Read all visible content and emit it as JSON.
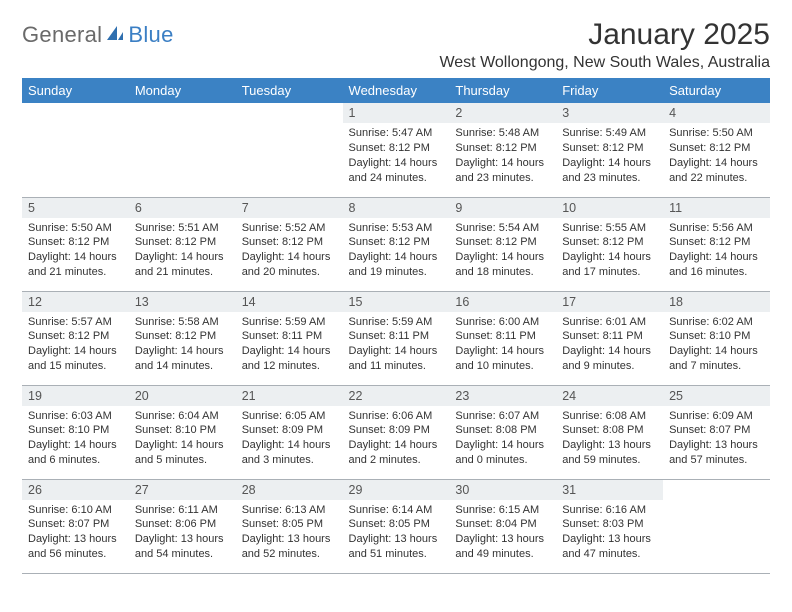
{
  "logo": {
    "text1": "General",
    "text2": "Blue"
  },
  "title": "January 2025",
  "location": "West Wollongong, New South Wales, Australia",
  "colors": {
    "header_bg": "#3b82c4",
    "header_text": "#ffffff",
    "daynum_bg": "#eceff1",
    "border": "#aab0b6",
    "body_text": "#333333",
    "logo_gray": "#6a6a6a",
    "logo_blue": "#3b7fc4"
  },
  "day_labels": [
    "Sunday",
    "Monday",
    "Tuesday",
    "Wednesday",
    "Thursday",
    "Friday",
    "Saturday"
  ],
  "weeks": [
    [
      {
        "n": "",
        "sr": "",
        "ss": "",
        "dl": ""
      },
      {
        "n": "",
        "sr": "",
        "ss": "",
        "dl": ""
      },
      {
        "n": "",
        "sr": "",
        "ss": "",
        "dl": ""
      },
      {
        "n": "1",
        "sr": "Sunrise: 5:47 AM",
        "ss": "Sunset: 8:12 PM",
        "dl": "Daylight: 14 hours and 24 minutes."
      },
      {
        "n": "2",
        "sr": "Sunrise: 5:48 AM",
        "ss": "Sunset: 8:12 PM",
        "dl": "Daylight: 14 hours and 23 minutes."
      },
      {
        "n": "3",
        "sr": "Sunrise: 5:49 AM",
        "ss": "Sunset: 8:12 PM",
        "dl": "Daylight: 14 hours and 23 minutes."
      },
      {
        "n": "4",
        "sr": "Sunrise: 5:50 AM",
        "ss": "Sunset: 8:12 PM",
        "dl": "Daylight: 14 hours and 22 minutes."
      }
    ],
    [
      {
        "n": "5",
        "sr": "Sunrise: 5:50 AM",
        "ss": "Sunset: 8:12 PM",
        "dl": "Daylight: 14 hours and 21 minutes."
      },
      {
        "n": "6",
        "sr": "Sunrise: 5:51 AM",
        "ss": "Sunset: 8:12 PM",
        "dl": "Daylight: 14 hours and 21 minutes."
      },
      {
        "n": "7",
        "sr": "Sunrise: 5:52 AM",
        "ss": "Sunset: 8:12 PM",
        "dl": "Daylight: 14 hours and 20 minutes."
      },
      {
        "n": "8",
        "sr": "Sunrise: 5:53 AM",
        "ss": "Sunset: 8:12 PM",
        "dl": "Daylight: 14 hours and 19 minutes."
      },
      {
        "n": "9",
        "sr": "Sunrise: 5:54 AM",
        "ss": "Sunset: 8:12 PM",
        "dl": "Daylight: 14 hours and 18 minutes."
      },
      {
        "n": "10",
        "sr": "Sunrise: 5:55 AM",
        "ss": "Sunset: 8:12 PM",
        "dl": "Daylight: 14 hours and 17 minutes."
      },
      {
        "n": "11",
        "sr": "Sunrise: 5:56 AM",
        "ss": "Sunset: 8:12 PM",
        "dl": "Daylight: 14 hours and 16 minutes."
      }
    ],
    [
      {
        "n": "12",
        "sr": "Sunrise: 5:57 AM",
        "ss": "Sunset: 8:12 PM",
        "dl": "Daylight: 14 hours and 15 minutes."
      },
      {
        "n": "13",
        "sr": "Sunrise: 5:58 AM",
        "ss": "Sunset: 8:12 PM",
        "dl": "Daylight: 14 hours and 14 minutes."
      },
      {
        "n": "14",
        "sr": "Sunrise: 5:59 AM",
        "ss": "Sunset: 8:11 PM",
        "dl": "Daylight: 14 hours and 12 minutes."
      },
      {
        "n": "15",
        "sr": "Sunrise: 5:59 AM",
        "ss": "Sunset: 8:11 PM",
        "dl": "Daylight: 14 hours and 11 minutes."
      },
      {
        "n": "16",
        "sr": "Sunrise: 6:00 AM",
        "ss": "Sunset: 8:11 PM",
        "dl": "Daylight: 14 hours and 10 minutes."
      },
      {
        "n": "17",
        "sr": "Sunrise: 6:01 AM",
        "ss": "Sunset: 8:11 PM",
        "dl": "Daylight: 14 hours and 9 minutes."
      },
      {
        "n": "18",
        "sr": "Sunrise: 6:02 AM",
        "ss": "Sunset: 8:10 PM",
        "dl": "Daylight: 14 hours and 7 minutes."
      }
    ],
    [
      {
        "n": "19",
        "sr": "Sunrise: 6:03 AM",
        "ss": "Sunset: 8:10 PM",
        "dl": "Daylight: 14 hours and 6 minutes."
      },
      {
        "n": "20",
        "sr": "Sunrise: 6:04 AM",
        "ss": "Sunset: 8:10 PM",
        "dl": "Daylight: 14 hours and 5 minutes."
      },
      {
        "n": "21",
        "sr": "Sunrise: 6:05 AM",
        "ss": "Sunset: 8:09 PM",
        "dl": "Daylight: 14 hours and 3 minutes."
      },
      {
        "n": "22",
        "sr": "Sunrise: 6:06 AM",
        "ss": "Sunset: 8:09 PM",
        "dl": "Daylight: 14 hours and 2 minutes."
      },
      {
        "n": "23",
        "sr": "Sunrise: 6:07 AM",
        "ss": "Sunset: 8:08 PM",
        "dl": "Daylight: 14 hours and 0 minutes."
      },
      {
        "n": "24",
        "sr": "Sunrise: 6:08 AM",
        "ss": "Sunset: 8:08 PM",
        "dl": "Daylight: 13 hours and 59 minutes."
      },
      {
        "n": "25",
        "sr": "Sunrise: 6:09 AM",
        "ss": "Sunset: 8:07 PM",
        "dl": "Daylight: 13 hours and 57 minutes."
      }
    ],
    [
      {
        "n": "26",
        "sr": "Sunrise: 6:10 AM",
        "ss": "Sunset: 8:07 PM",
        "dl": "Daylight: 13 hours and 56 minutes."
      },
      {
        "n": "27",
        "sr": "Sunrise: 6:11 AM",
        "ss": "Sunset: 8:06 PM",
        "dl": "Daylight: 13 hours and 54 minutes."
      },
      {
        "n": "28",
        "sr": "Sunrise: 6:13 AM",
        "ss": "Sunset: 8:05 PM",
        "dl": "Daylight: 13 hours and 52 minutes."
      },
      {
        "n": "29",
        "sr": "Sunrise: 6:14 AM",
        "ss": "Sunset: 8:05 PM",
        "dl": "Daylight: 13 hours and 51 minutes."
      },
      {
        "n": "30",
        "sr": "Sunrise: 6:15 AM",
        "ss": "Sunset: 8:04 PM",
        "dl": "Daylight: 13 hours and 49 minutes."
      },
      {
        "n": "31",
        "sr": "Sunrise: 6:16 AM",
        "ss": "Sunset: 8:03 PM",
        "dl": "Daylight: 13 hours and 47 minutes."
      },
      {
        "n": "",
        "sr": "",
        "ss": "",
        "dl": ""
      }
    ]
  ]
}
